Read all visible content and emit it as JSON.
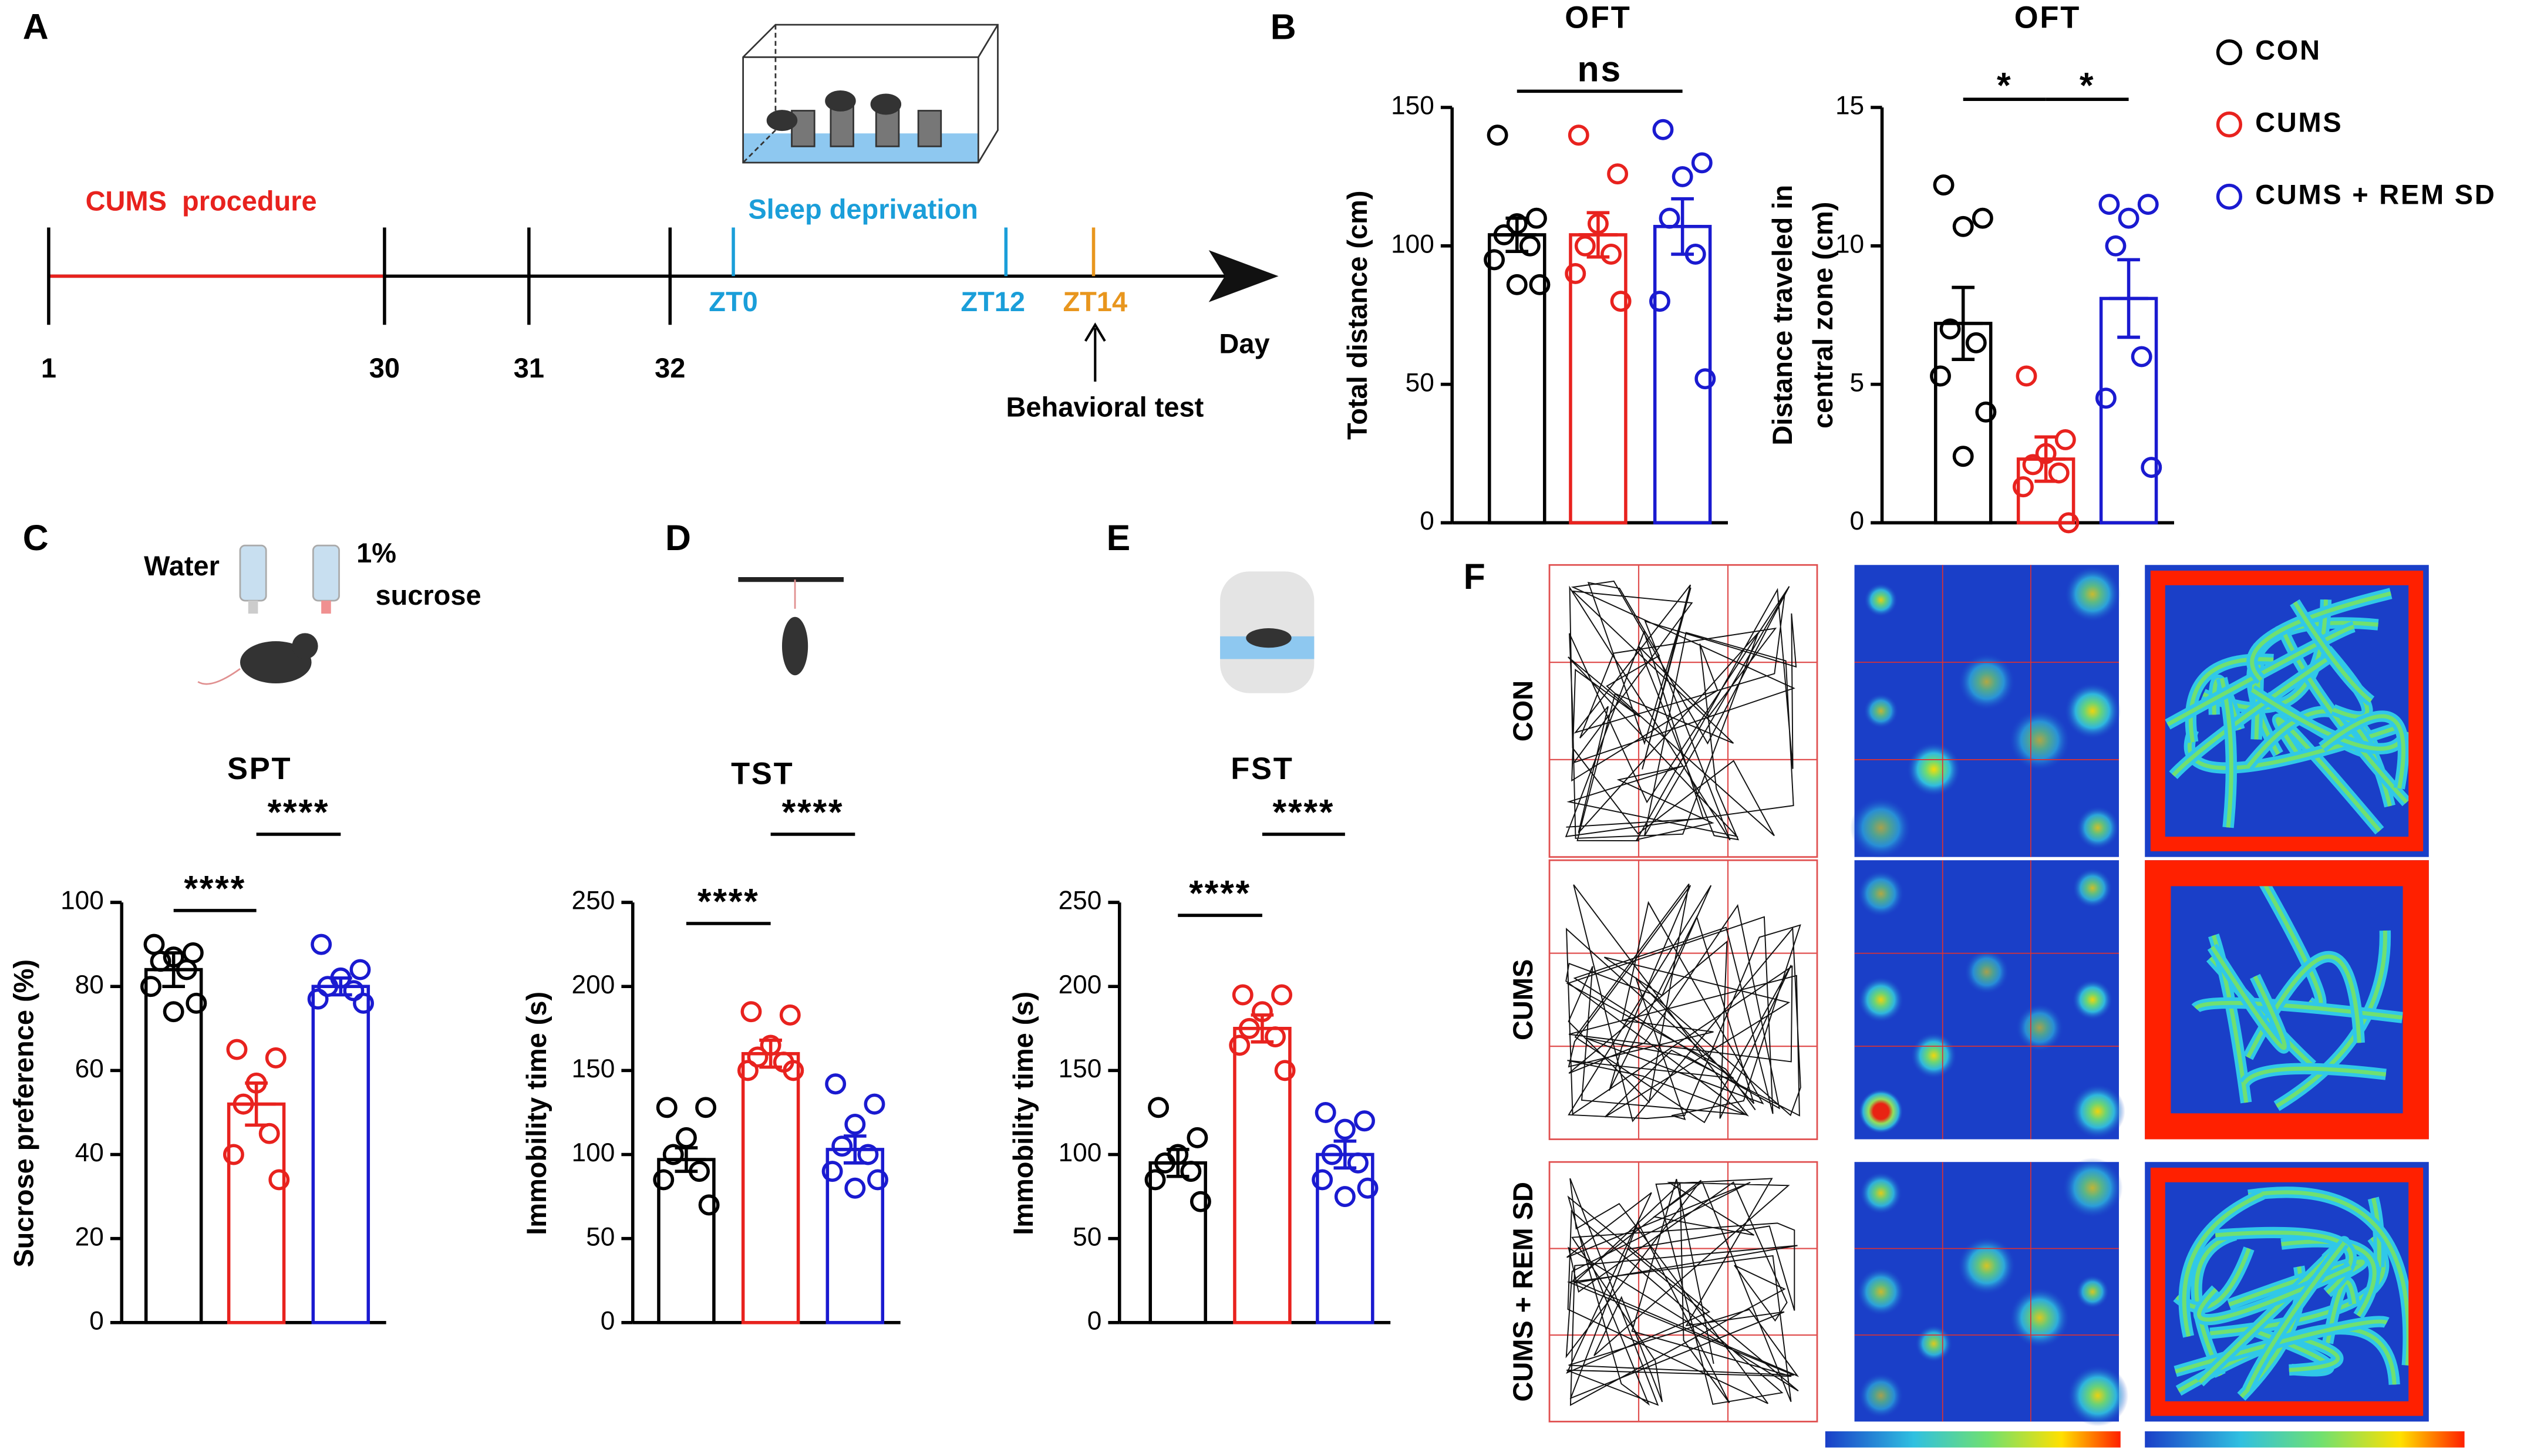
{
  "panel_labels": [
    "A",
    "B",
    "C",
    "D",
    "E",
    "F"
  ],
  "timeline": {
    "procedure": "CUMS  procedure",
    "sleep": "Sleep deprivation",
    "days": [
      "1",
      "30",
      "31",
      "32"
    ],
    "zt": [
      "ZT0",
      "ZT12",
      "ZT14"
    ],
    "unit": "Day",
    "test": "Behavioral test"
  },
  "spt_labels": [
    "Water",
    "1%",
    "sucrose"
  ],
  "legend": [
    {
      "name": "CON",
      "color": "#000000"
    },
    {
      "name": "CUMS",
      "color": "#e8221e"
    },
    {
      "name": "CUMS + REM SD",
      "color": "#1a1ad0"
    }
  ],
  "chart_data": [
    {
      "type": "bar",
      "title": "OFT",
      "ylabel": [
        "Total distance (cm)"
      ],
      "values": [
        104,
        104,
        107
      ],
      "errors": [
        6,
        8,
        10
      ],
      "points": [
        [
          140,
          110,
          108,
          104,
          100,
          95,
          86,
          86
        ],
        [
          140,
          126,
          108,
          100,
          97,
          90,
          80
        ],
        [
          142,
          130,
          125,
          110,
          97,
          80,
          52
        ]
      ],
      "ylim": [
        0,
        150
      ],
      "yticks": [
        0,
        50,
        100,
        150
      ],
      "annotations": [
        "ns"
      ]
    },
    {
      "type": "bar",
      "title": "OFT",
      "ylabel": [
        "Distance traveled in",
        "central zone (cm)"
      ],
      "values": [
        7.2,
        2.3,
        8.1
      ],
      "errors": [
        1.3,
        0.8,
        1.4
      ],
      "points": [
        [
          12.2,
          11.0,
          10.7,
          7.0,
          6.5,
          5.3,
          4.0,
          2.4
        ],
        [
          5.3,
          3.0,
          2.5,
          2.1,
          1.8,
          1.3,
          0.0
        ],
        [
          11.5,
          11.5,
          11.0,
          10.0,
          6.0,
          4.5,
          2.0
        ]
      ],
      "ylim": [
        0,
        15
      ],
      "yticks": [
        0,
        5,
        10,
        15
      ],
      "annotations": [
        "*",
        "*"
      ]
    },
    {
      "type": "bar",
      "title": "SPT",
      "ylabel": [
        "Sucrose preference (%)"
      ],
      "values": [
        84,
        52,
        80
      ],
      "errors": [
        4,
        5,
        2
      ],
      "points": [
        [
          90,
          88,
          87,
          86,
          84,
          80,
          76,
          74
        ],
        [
          65,
          63,
          57,
          52,
          45,
          40,
          34
        ],
        [
          90,
          84,
          82,
          80,
          79,
          77,
          76
        ]
      ],
      "ylim": [
        0,
        100
      ],
      "yticks": [
        0,
        20,
        40,
        60,
        80,
        100
      ],
      "annotations": [
        "****",
        "****"
      ]
    },
    {
      "type": "bar",
      "title": "TST",
      "ylabel": [
        "Immobility time (s)"
      ],
      "values": [
        97,
        160,
        103
      ],
      "errors": [
        7,
        8,
        8
      ],
      "points": [
        [
          128,
          128,
          110,
          100,
          90,
          85,
          70
        ],
        [
          185,
          183,
          165,
          158,
          155,
          150,
          150
        ],
        [
          142,
          130,
          118,
          105,
          100,
          90,
          85,
          80
        ]
      ],
      "ylim": [
        0,
        250
      ],
      "yticks": [
        0,
        50,
        100,
        150,
        200,
        250
      ],
      "annotations": [
        "****",
        "****"
      ]
    },
    {
      "type": "bar",
      "title": "FST",
      "ylabel": [
        "Immobility time (s)"
      ],
      "values": [
        95,
        175,
        100
      ],
      "errors": [
        8,
        8,
        8
      ],
      "points": [
        [
          128,
          110,
          100,
          95,
          90,
          85,
          72
        ],
        [
          195,
          195,
          185,
          175,
          170,
          165,
          150
        ],
        [
          125,
          120,
          115,
          100,
          95,
          85,
          80,
          75
        ]
      ],
      "ylim": [
        0,
        250
      ],
      "yticks": [
        0,
        50,
        100,
        150,
        200,
        250
      ],
      "annotations": [
        "****",
        "****"
      ]
    }
  ],
  "traces": {
    "rows": [
      "CON",
      "CUMS",
      "CUMS + REM SD"
    ]
  }
}
